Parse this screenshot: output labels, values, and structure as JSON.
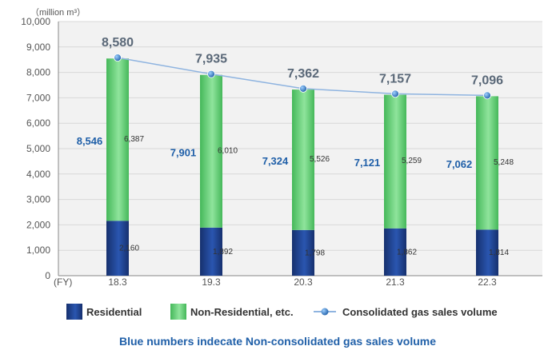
{
  "chart_data": {
    "type": "bar",
    "stacked": true,
    "unit_label": "（million m³）",
    "x_prefix": "(FY)",
    "categories": [
      "18.3",
      "19.3",
      "20.3",
      "21.3",
      "22.3"
    ],
    "ylim": [
      0,
      10000
    ],
    "y_ticks": [
      "0",
      "1,000",
      "2,000",
      "3,000",
      "4,000",
      "5,000",
      "6,000",
      "7,000",
      "8,000",
      "9,000",
      "10,000"
    ],
    "y_tick_values": [
      0,
      1000,
      2000,
      3000,
      4000,
      5000,
      6000,
      7000,
      8000,
      9000,
      10000
    ],
    "grid": true,
    "series": [
      {
        "name": "Residential",
        "values": [
          2160,
          1892,
          1798,
          1862,
          1814
        ],
        "labels": [
          "2,160",
          "1,892",
          "1,798",
          "1,862",
          "1,814"
        ],
        "color": "#1d3f8f"
      },
      {
        "name": "Non-Residential, etc.",
        "values": [
          6387,
          6010,
          5526,
          5259,
          5248
        ],
        "labels": [
          "6,387",
          "6,010",
          "5,526",
          "5,259",
          "5,248"
        ],
        "color": "#5fcf72"
      }
    ],
    "line_series": {
      "name": "Consolidated gas sales volume",
      "values": [
        8580,
        7935,
        7362,
        7157,
        7096
      ],
      "labels": [
        "8,580",
        "7,935",
        "7,362",
        "7,157",
        "7,096"
      ],
      "color": "#8fb4e0"
    },
    "non_consolidated": {
      "values": [
        8546,
        7901,
        7324,
        7121,
        7062
      ],
      "labels": [
        "8,546",
        "7,901",
        "7,324",
        "7,121",
        "7,062"
      ],
      "color": "#1f5fa8"
    },
    "legend_position": "bottom",
    "note": "Blue numbers indecate Non-consolidated gas sales volume",
    "colors": {
      "grid": "#d8d8d8",
      "plot_bg": "#f2f2f2",
      "axis": "#888888"
    }
  }
}
